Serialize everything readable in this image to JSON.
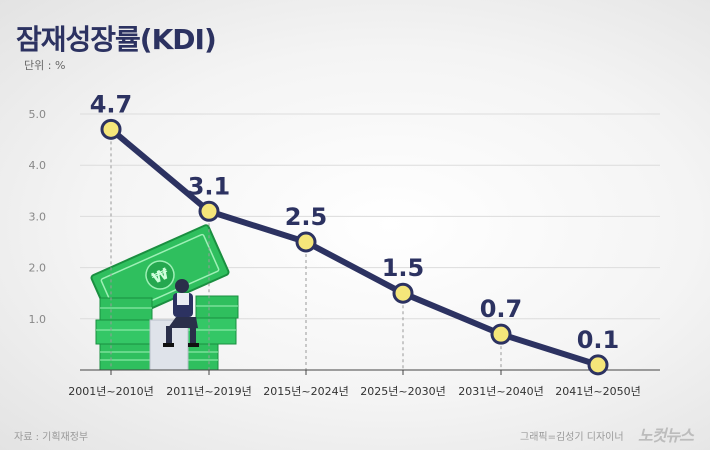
{
  "header": {
    "title": "잠재성장률(KDI)",
    "unit": "단위 : %"
  },
  "footer": {
    "source": "자료 : 기획재정부",
    "credit": "그래픽=김성기 디자이너",
    "logo": "노컷뉴스"
  },
  "colors": {
    "title": "#2c3261",
    "line": "#2c3261",
    "marker_fill": "#f5e67a",
    "marker_stroke": "#e8c95a",
    "money_green": "#2fbf5e"
  },
  "chart_data": {
    "type": "line",
    "title": "잠재성장률(KDI)",
    "ylabel": "단위 : %",
    "xlabel": "",
    "categories": [
      "2001년~2010년",
      "2011년~2019년",
      "2015년~2024년",
      "2025년~2030년",
      "2031년~2040년",
      "2041년~2050년"
    ],
    "values": [
      4.7,
      3.1,
      2.5,
      1.5,
      0.7,
      0.1
    ],
    "data_labels": [
      "4.7",
      "3.1",
      "2.5",
      "1.5",
      "0.7",
      "0.1"
    ],
    "yticks": [
      "1.0",
      "2.0",
      "3.0",
      "4.0",
      "5.0"
    ],
    "ylim": [
      0,
      5.0
    ],
    "grid": true,
    "legend": "none"
  }
}
